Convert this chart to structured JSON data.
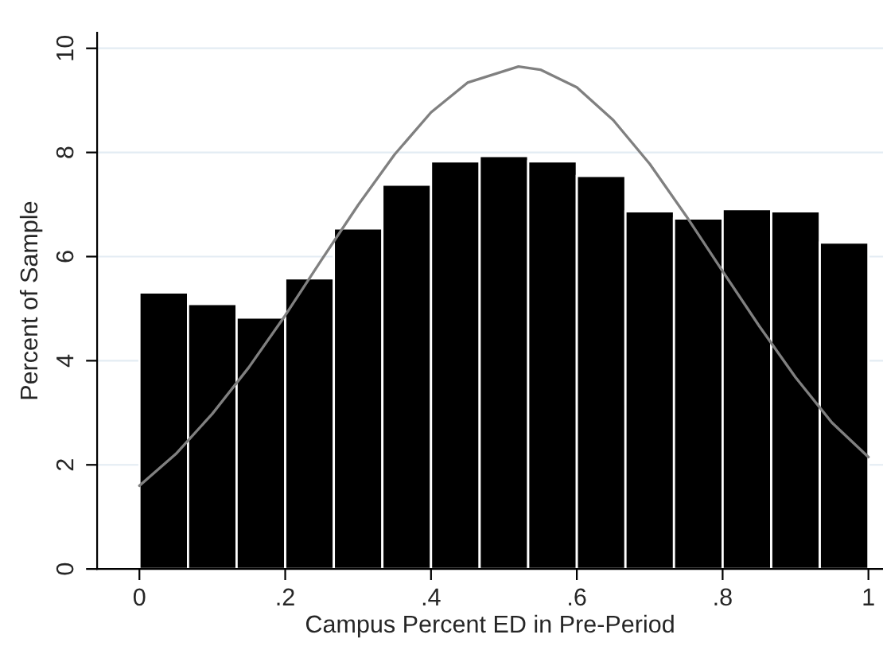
{
  "chart_data": {
    "type": "histogram",
    "xlabel": "Campus Percent ED in Pre-Period",
    "ylabel": "Percent of Sample",
    "bins": [
      0,
      0.0667,
      0.1333,
      0.2,
      0.2667,
      0.3333,
      0.4,
      0.4667,
      0.5333,
      0.6,
      0.6667,
      0.7333,
      0.8,
      0.8667,
      0.9333,
      1
    ],
    "values": [
      5.31,
      5.09,
      4.83,
      5.58,
      6.54,
      7.38,
      7.83,
      7.93,
      7.83,
      7.55,
      6.87,
      6.73,
      6.91,
      6.87,
      6.27
    ],
    "color": "#000000",
    "series": [
      {
        "type": "line",
        "color": "#808080",
        "x": [
          0,
          0.05,
          0.1,
          0.15,
          0.2,
          0.25,
          0.3,
          0.35,
          0.4,
          0.45,
          0.52,
          0.55,
          0.6,
          0.65,
          0.7,
          0.75,
          0.8,
          0.85,
          0.9,
          0.95,
          1
        ],
        "values": [
          1.6,
          2.21,
          2.98,
          3.87,
          4.87,
          5.94,
          6.99,
          7.96,
          8.77,
          9.34,
          9.65,
          9.59,
          9.25,
          8.62,
          7.78,
          6.78,
          5.72,
          4.67,
          3.68,
          2.81,
          2.15
        ]
      }
    ],
    "xlim": [
      -0.058,
      1.02
    ],
    "ylim": [
      0,
      10.3
    ],
    "xticks": [
      {
        "value": 0,
        "label": "0"
      },
      {
        "value": 0.2,
        "label": ".2"
      },
      {
        "value": 0.4,
        "label": ".4"
      },
      {
        "value": 0.6,
        "label": ".6"
      },
      {
        "value": 0.8,
        "label": ".8"
      },
      {
        "value": 1,
        "label": "1"
      }
    ],
    "yticks": [
      0,
      2,
      4,
      6,
      8,
      10
    ],
    "grid": "y"
  }
}
